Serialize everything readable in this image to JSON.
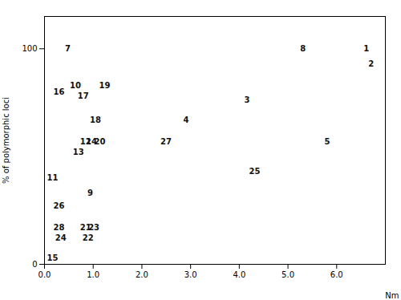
{
  "chart_data": {
    "type": "scatter",
    "x": [
      6.55,
      6.65,
      4.1,
      2.85,
      5.75,
      0.42,
      5.25,
      0.88,
      0.52,
      0.05,
      0.73,
      0.58,
      0.85,
      0.05,
      0.18,
      0.68,
      0.93,
      1.12,
      1.02,
      0.73,
      0.78,
      0.9,
      0.22,
      4.2,
      0.18,
      2.38,
      0.18
    ],
    "values": [
      100,
      93,
      76,
      67,
      57,
      100,
      100,
      33,
      83,
      40,
      57,
      52,
      57,
      3,
      80,
      78,
      67,
      83,
      57,
      17,
      12,
      17,
      12,
      43,
      27,
      57,
      17
    ],
    "labels": [
      "1",
      "2",
      "3",
      "4",
      "5",
      "7",
      "8",
      "9",
      "10",
      "11",
      "12",
      "13",
      "14",
      "15",
      "16",
      "17",
      "18",
      "19",
      "20",
      "21",
      "22",
      "23",
      "24",
      "25",
      "26",
      "27",
      "28"
    ],
    "color": "#111111",
    "xlabel": "Nm",
    "ylabel": "% of polymorphic loci",
    "xlim": [
      0,
      7.0
    ],
    "ylim": [
      0,
      115
    ],
    "xticks": [
      0,
      1,
      2,
      3,
      4,
      5,
      6
    ],
    "yticks": [
      0,
      100
    ]
  }
}
